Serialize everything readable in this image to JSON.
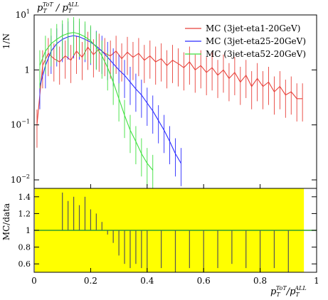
{
  "chart_data": {
    "type": "line",
    "title": "p_T^{ToT} / p_T^{ALL}",
    "title_parts": {
      "p": "p",
      "sub": "T",
      "sup": "ToT",
      "slash": " / ",
      "sup2": "ALL"
    },
    "xlabel_parts": {
      "p": "p",
      "sub": "T",
      "sup": "ToT",
      "slash": "/",
      "sup2": "ALL"
    },
    "ylabel_top": "1/N",
    "ylabel_bottom": "MC/data",
    "xlim": [
      0,
      1
    ],
    "x_ticks": [
      "0",
      "0.2",
      "0.4",
      "0.6",
      "0.8",
      "1"
    ],
    "top_scale": "log",
    "top_ylim": [
      0.007,
      10
    ],
    "top_y_ticks": [
      {
        "value": 10,
        "base": "10",
        "exp": "1"
      },
      {
        "value": 1,
        "base": "1",
        "exp": ""
      },
      {
        "value": 0.1,
        "base": "10",
        "exp": "−1"
      },
      {
        "value": 0.01,
        "base": "10",
        "exp": "−2"
      }
    ],
    "bottom_ylim": [
      0.5,
      1.5
    ],
    "bottom_y_ticks": [
      "0.6",
      "0.8",
      "1",
      "1.2",
      "1.4"
    ],
    "legend_position": "top-right",
    "series": [
      {
        "name": "MC (3jet-eta1-20GeV)",
        "color": "#e8413a",
        "x": [
          0.01,
          0.03,
          0.05,
          0.07,
          0.09,
          0.11,
          0.13,
          0.15,
          0.17,
          0.19,
          0.21,
          0.23,
          0.25,
          0.27,
          0.29,
          0.31,
          0.33,
          0.35,
          0.37,
          0.39,
          0.41,
          0.43,
          0.45,
          0.47,
          0.49,
          0.51,
          0.53,
          0.55,
          0.57,
          0.59,
          0.61,
          0.63,
          0.65,
          0.67,
          0.69,
          0.71,
          0.73,
          0.75,
          0.77,
          0.79,
          0.81,
          0.83,
          0.85,
          0.87,
          0.89,
          0.91,
          0.93,
          0.95
        ],
        "y": [
          0.1,
          1.2,
          2.0,
          1.6,
          1.4,
          1.8,
          1.5,
          2.2,
          1.7,
          2.6,
          1.9,
          2.4,
          2.0,
          1.8,
          2.2,
          1.6,
          2.1,
          1.7,
          2.0,
          1.5,
          1.8,
          1.4,
          1.6,
          1.2,
          1.5,
          1.3,
          1.1,
          1.4,
          1.0,
          1.2,
          0.9,
          1.1,
          0.8,
          1.0,
          0.7,
          0.9,
          0.6,
          0.8,
          0.5,
          0.7,
          0.5,
          0.6,
          0.4,
          0.5,
          0.35,
          0.4,
          0.3,
          0.3
        ]
      },
      {
        "name": "MC (3jet-eta25-20GeV)",
        "color": "#2b2bff",
        "x": [
          0.02,
          0.04,
          0.06,
          0.08,
          0.1,
          0.12,
          0.14,
          0.16,
          0.18,
          0.2,
          0.22,
          0.24,
          0.26,
          0.28,
          0.3,
          0.32,
          0.34,
          0.36,
          0.38,
          0.4,
          0.42,
          0.44,
          0.46,
          0.48,
          0.5,
          0.52
        ],
        "y": [
          0.5,
          1.2,
          2.2,
          3.0,
          3.6,
          4.0,
          4.2,
          4.0,
          3.6,
          3.2,
          2.7,
          2.2,
          1.7,
          1.3,
          1.0,
          0.8,
          0.6,
          0.45,
          0.35,
          0.25,
          0.18,
          0.12,
          0.08,
          0.05,
          0.03,
          0.02
        ]
      },
      {
        "name": "MC (3jet-eta52-20GeV)",
        "color": "#3ee03e",
        "x": [
          0.02,
          0.04,
          0.06,
          0.08,
          0.1,
          0.12,
          0.14,
          0.16,
          0.18,
          0.2,
          0.22,
          0.24,
          0.26,
          0.28,
          0.3,
          0.32,
          0.34,
          0.36,
          0.38,
          0.4,
          0.42
        ],
        "y": [
          1.2,
          2.2,
          3.0,
          3.6,
          4.2,
          4.6,
          4.8,
          4.5,
          4.0,
          3.4,
          2.6,
          1.8,
          1.1,
          0.6,
          0.3,
          0.15,
          0.08,
          0.05,
          0.03,
          0.02,
          0.015
        ]
      }
    ],
    "ratio": {
      "reference_line": 1.0,
      "band_color": "#ffff00",
      "band_x": [
        0.0,
        0.955
      ],
      "band_y": [
        0.5,
        1.5
      ],
      "points_x": [
        0.1,
        0.12,
        0.14,
        0.16,
        0.18,
        0.2,
        0.22,
        0.24,
        0.26,
        0.28,
        0.3,
        0.32,
        0.34,
        0.36,
        0.38,
        0.4,
        0.45,
        0.5,
        0.55,
        0.6,
        0.65,
        0.7,
        0.75,
        0.8,
        0.85,
        0.9
      ],
      "points_y": [
        1.45,
        1.35,
        1.4,
        1.3,
        1.4,
        1.25,
        1.2,
        1.1,
        0.95,
        0.85,
        0.7,
        0.6,
        0.55,
        0.6,
        0.55,
        0.5,
        0.55,
        0.5,
        0.55,
        0.5,
        0.55,
        0.6,
        0.55,
        0.5,
        0.55,
        0.5
      ],
      "points_color": "#555555"
    }
  }
}
